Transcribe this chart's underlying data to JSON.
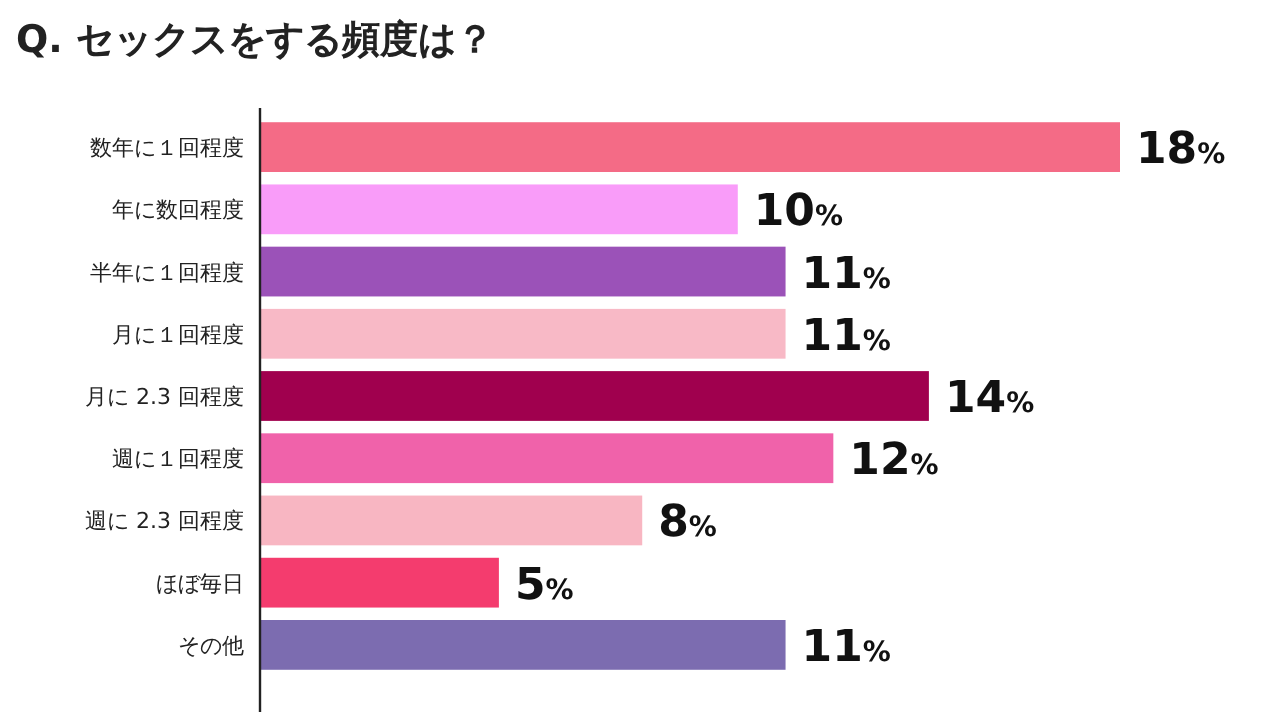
{
  "chart_data": {
    "type": "bar",
    "orientation": "horizontal",
    "title": "Q. セックスをする頻度は？",
    "categories": [
      "数年に１回程度",
      "年に数回程度",
      "半年に１回程度",
      "月に１回程度",
      "月に 2.3 回程度",
      "週に１回程度",
      "週に 2.3 回程度",
      "ほぼ毎日",
      "その他"
    ],
    "values": [
      18,
      10,
      11,
      11,
      14,
      12,
      8,
      5,
      11
    ],
    "colors": [
      "#f46b86",
      "#f99cf9",
      "#9b52b8",
      "#f8b9c6",
      "#a0004e",
      "#f062aa",
      "#f8b6c2",
      "#f43c6e",
      "#7c6cb0"
    ],
    "value_labels": [
      "18%",
      "10%",
      "11%",
      "11%",
      "14%",
      "12%",
      "8%",
      "5%",
      "11%"
    ]
  }
}
